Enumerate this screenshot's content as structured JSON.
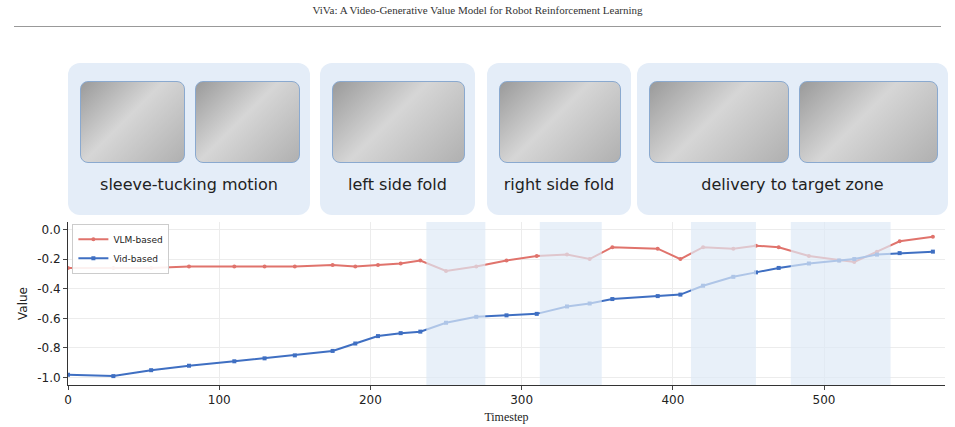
{
  "header": {
    "title": "ViVa: A Video-Generative Value Model for Robot Reinforcement Learning"
  },
  "panels": [
    "sleeve-tucking motion",
    "left side fold",
    "right side fold",
    "delivery to target zone"
  ],
  "chart_data": {
    "type": "line",
    "x_label": "Timestep",
    "y_label": "Value",
    "x": [
      0,
      30,
      55,
      80,
      110,
      130,
      150,
      175,
      190,
      205,
      220,
      233,
      250,
      270,
      290,
      310,
      330,
      345,
      360,
      390,
      405,
      420,
      440,
      455,
      470,
      490,
      510,
      520,
      535,
      550,
      572
    ],
    "series": [
      {
        "name": "VLM-based",
        "color": "#e0736c",
        "marker": "circle",
        "values": [
          -0.26,
          -0.26,
          -0.26,
          -0.25,
          -0.25,
          -0.25,
          -0.25,
          -0.24,
          -0.25,
          -0.24,
          -0.23,
          -0.21,
          -0.28,
          -0.25,
          -0.21,
          -0.18,
          -0.17,
          -0.2,
          -0.12,
          -0.13,
          -0.2,
          -0.12,
          -0.13,
          -0.11,
          -0.12,
          -0.18,
          -0.21,
          -0.22,
          -0.15,
          -0.08,
          -0.05
        ]
      },
      {
        "name": "Vid-based",
        "color": "#3f6fc2",
        "marker": "square",
        "values": [
          -0.98,
          -0.99,
          -0.95,
          -0.92,
          -0.89,
          -0.87,
          -0.85,
          -0.82,
          -0.77,
          -0.72,
          -0.7,
          -0.69,
          -0.63,
          -0.59,
          -0.58,
          -0.57,
          -0.52,
          -0.5,
          -0.47,
          -0.45,
          -0.44,
          -0.38,
          -0.32,
          -0.29,
          -0.26,
          -0.23,
          -0.21,
          -0.2,
          -0.17,
          -0.16,
          -0.15
        ]
      }
    ],
    "highlight_ranges": [
      [
        237,
        276
      ],
      [
        312,
        353
      ],
      [
        412,
        455
      ],
      [
        478,
        544
      ]
    ],
    "xlim": [
      0,
      580
    ],
    "ylim": [
      -1.05,
      0.05
    ],
    "xticks": [
      0,
      100,
      200,
      300,
      400,
      500
    ],
    "yticks": [
      {
        "value": -1.0,
        "label": "-1.0"
      },
      {
        "value": -0.8,
        "label": "-0.8"
      },
      {
        "value": -0.6,
        "label": "-0.6"
      },
      {
        "value": -0.4,
        "label": "-0.4"
      },
      {
        "value": -0.2,
        "label": "-0.2"
      },
      {
        "value": 0.0,
        "label": "0.0"
      }
    ],
    "grid": true,
    "legend": "upper left"
  }
}
